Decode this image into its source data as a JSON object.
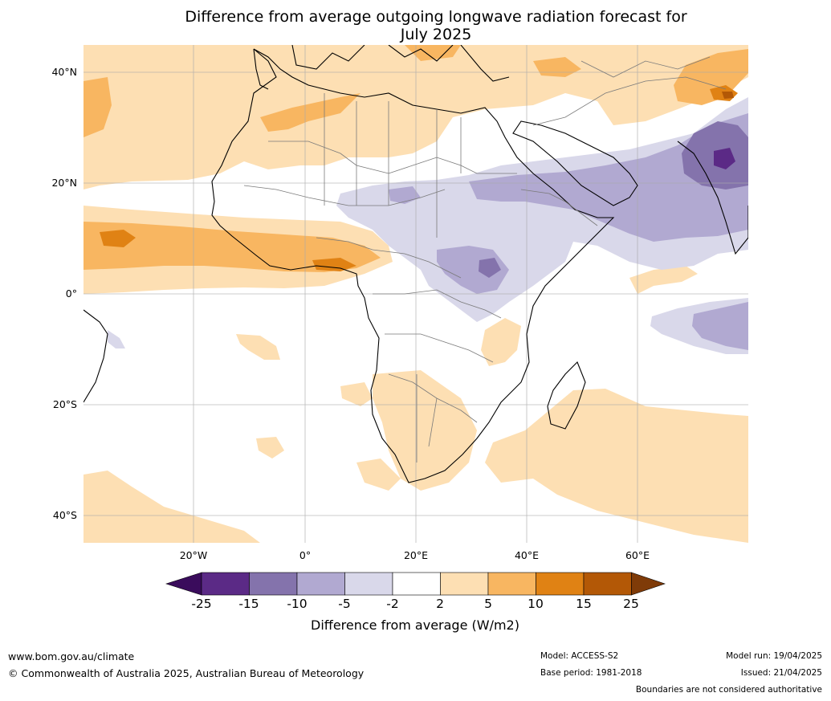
{
  "title_line1": "Difference from average outgoing longwave radiation forecast for",
  "title_line2": "July 2025",
  "lat_labels": [
    "40°N",
    "20°N",
    "0°",
    "20°S",
    "40°S"
  ],
  "lon_labels": [
    "20°W",
    "0°",
    "20°E",
    "40°E",
    "60°E"
  ],
  "colorbar": {
    "ticks": [
      "-25",
      "-15",
      "-10",
      "-5",
      "-2",
      "2",
      "5",
      "10",
      "15",
      "25"
    ],
    "colors": [
      "#3a0c5c",
      "#5b2a86",
      "#8473ac",
      "#b1a9d1",
      "#d9d8ea",
      "#ffffff",
      "#fddfb3",
      "#f8b661",
      "#e08214",
      "#b35806",
      "#7f3b08"
    ],
    "label": "Difference from average (W/m2)"
  },
  "footer": {
    "website": "www.bom.gov.au/climate",
    "copyright": "© Commonwealth of Australia 2025, Australian Bureau of Meteorology",
    "model": "Model: ACCESS-S2",
    "base_period": "Base period: 1981-2018",
    "model_run": "Model run: 19/04/2025",
    "issued": "Issued: 21/04/2025",
    "disclaimer": "Boundaries are not considered authoritative"
  }
}
